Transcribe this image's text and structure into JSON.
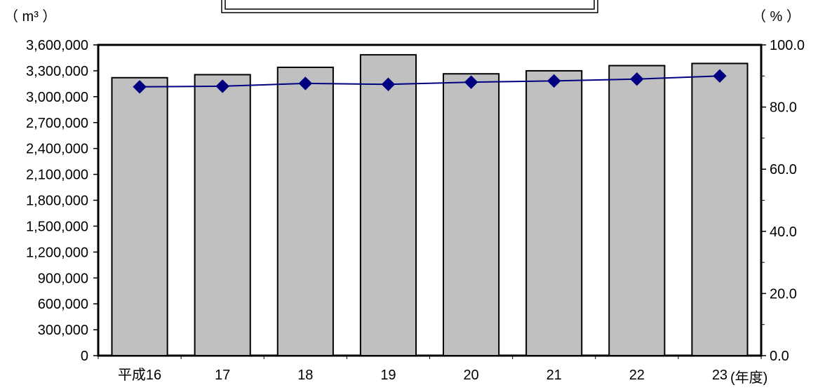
{
  "chart_data": {
    "type": "bar",
    "title": "",
    "categories": [
      "平成16",
      "17",
      "18",
      "19",
      "20",
      "21",
      "22",
      "23"
    ],
    "xlabel": "(年度)",
    "series": [
      {
        "name": "",
        "axis": "left",
        "type": "bar",
        "values": [
          3220000,
          3255000,
          3340000,
          3485000,
          3265000,
          3300000,
          3360000,
          3385000
        ],
        "color": "#c0c0c0"
      },
      {
        "name": "",
        "axis": "right",
        "type": "line",
        "marker": "diamond",
        "values": [
          86.5,
          86.7,
          87.6,
          87.3,
          88.0,
          88.4,
          89.0,
          90.0
        ],
        "color": "#000080"
      }
    ],
    "y_left": {
      "unit": "（ m³ ）",
      "ylim": [
        0,
        3600000
      ],
      "ticks": [
        0,
        300000,
        600000,
        900000,
        1200000,
        1500000,
        1800000,
        2100000,
        2400000,
        2700000,
        3000000,
        3300000,
        3600000
      ],
      "tick_labels": [
        "0",
        "300,000",
        "600,000",
        "900,000",
        "1,200,000",
        "1,500,000",
        "1,800,000",
        "2,100,000",
        "2,400,000",
        "2,700,000",
        "3,000,000",
        "3,300,000",
        "3,600,000"
      ]
    },
    "y_right": {
      "unit": "（ % ）",
      "ylim": [
        0,
        100
      ],
      "ticks": [
        0,
        20,
        40,
        60,
        80,
        100
      ],
      "tick_labels": [
        "0.0",
        "20.0",
        "40.0",
        "60.0",
        "80.0",
        "100.0"
      ]
    },
    "grid": false,
    "legend": "none"
  }
}
